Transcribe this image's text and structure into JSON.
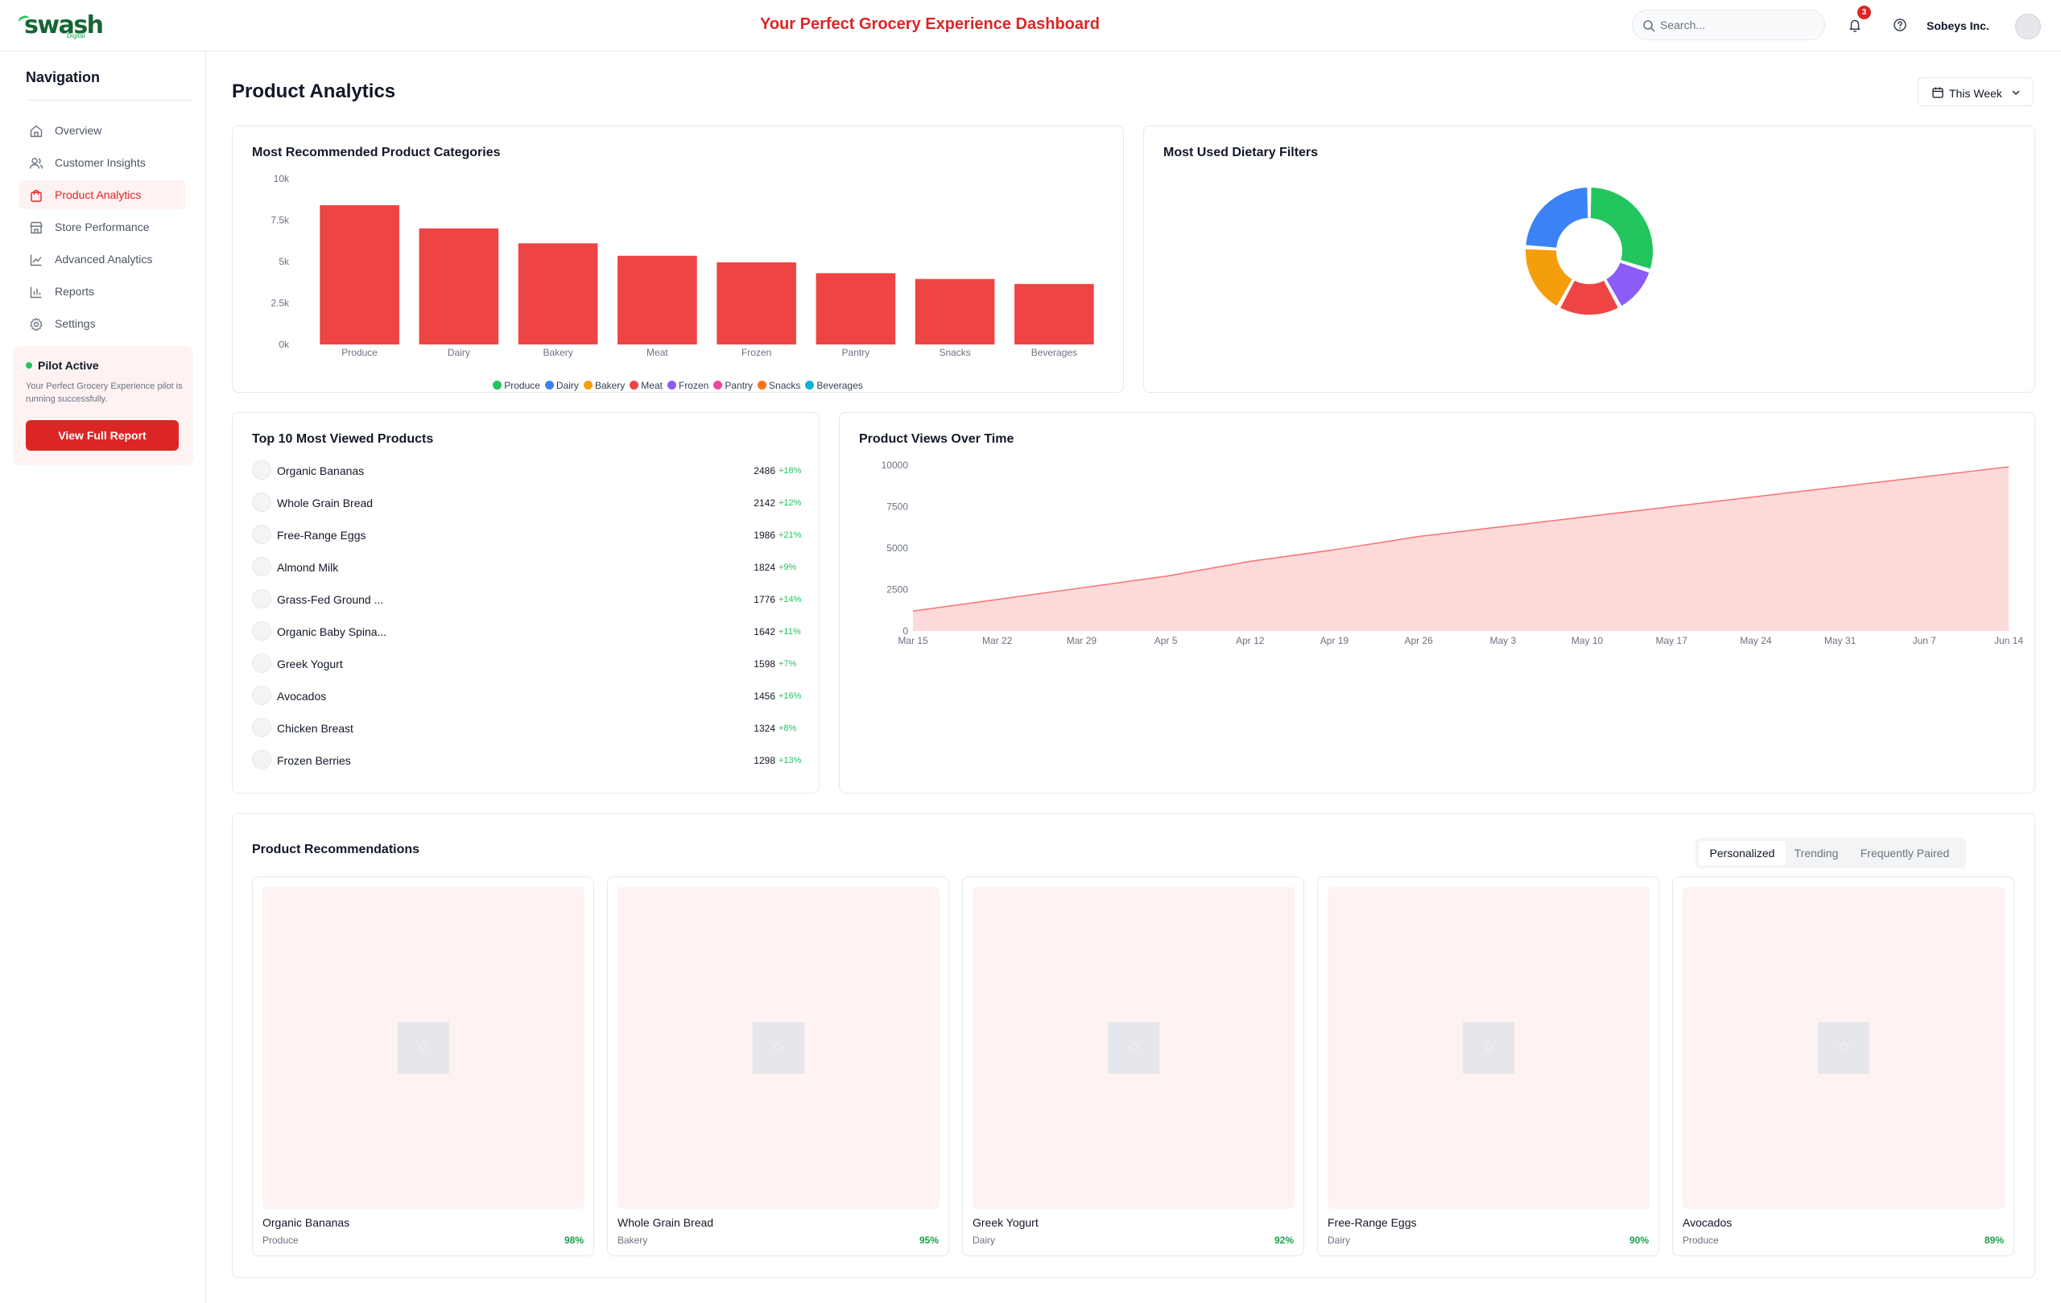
{
  "app": {
    "logo_text": "swash",
    "logo_sub": "Digital",
    "title": "Your Perfect Grocery Experience Dashboard",
    "search_placeholder": "Search...",
    "notification_count": "3",
    "company": "Sobeys Inc.",
    "accent_color": "#dc2626"
  },
  "sidebar": {
    "title": "Navigation",
    "items": [
      {
        "label": "Overview",
        "icon": "home-icon",
        "active": false
      },
      {
        "label": "Customer Insights",
        "icon": "users-icon",
        "active": false
      },
      {
        "label": "Product Analytics",
        "icon": "shopping-bag-icon",
        "active": true
      },
      {
        "label": "Store Performance",
        "icon": "store-icon",
        "active": false
      },
      {
        "label": "Advanced Analytics",
        "icon": "line-chart-icon",
        "active": false
      },
      {
        "label": "Reports",
        "icon": "bar-chart-icon",
        "active": false
      },
      {
        "label": "Settings",
        "icon": "gear-icon",
        "active": false
      }
    ],
    "pilot": {
      "title": "Pilot Active",
      "description": "Your Perfect Grocery Experience pilot is running successfully.",
      "button": "View Full Report"
    }
  },
  "main": {
    "title": "Product Analytics",
    "period": "This Week"
  },
  "categories_card": {
    "title": "Most Recommended Product Categories"
  },
  "dietary_card": {
    "title": "Most Used Dietary Filters"
  },
  "top_products": {
    "title": "Top 10 Most Viewed Products",
    "items": [
      {
        "name": "Organic Bananas",
        "views": "2486",
        "change": "+18%"
      },
      {
        "name": "Whole Grain Bread",
        "views": "2142",
        "change": "+12%"
      },
      {
        "name": "Free-Range Eggs",
        "views": "1986",
        "change": "+21%"
      },
      {
        "name": "Almond Milk",
        "views": "1824",
        "change": "+9%"
      },
      {
        "name": "Grass-Fed Ground ...",
        "views": "1776",
        "change": "+14%"
      },
      {
        "name": "Organic Baby Spina...",
        "views": "1642",
        "change": "+11%"
      },
      {
        "name": "Greek Yogurt",
        "views": "1598",
        "change": "+7%"
      },
      {
        "name": "Avocados",
        "views": "1456",
        "change": "+16%"
      },
      {
        "name": "Chicken Breast",
        "views": "1324",
        "change": "+8%"
      },
      {
        "name": "Frozen Berries",
        "views": "1298",
        "change": "+13%"
      }
    ]
  },
  "views_card": {
    "title": "Product Views Over Time"
  },
  "recommendations": {
    "title": "Product Recommendations",
    "tabs": [
      {
        "label": "Personalized",
        "active": true
      },
      {
        "label": "Trending",
        "active": false
      },
      {
        "label": "Frequently Paired",
        "active": false
      }
    ],
    "items": [
      {
        "name": "Organic Bananas",
        "category": "Produce",
        "score": "98%"
      },
      {
        "name": "Whole Grain Bread",
        "category": "Bakery",
        "score": "95%"
      },
      {
        "name": "Greek Yogurt",
        "category": "Dairy",
        "score": "92%"
      },
      {
        "name": "Free-Range Eggs",
        "category": "Dairy",
        "score": "90%"
      },
      {
        "name": "Avocados",
        "category": "Produce",
        "score": "89%"
      }
    ]
  },
  "chart_data": [
    {
      "type": "bar",
      "title": "Most Recommended Product Categories",
      "categories": [
        "Produce",
        "Dairy",
        "Bakery",
        "Meat",
        "Frozen",
        "Pantry",
        "Snacks",
        "Beverages"
      ],
      "values": [
        8400,
        7000,
        6100,
        5350,
        4950,
        4300,
        3950,
        3650
      ],
      "ylim": [
        0,
        10000
      ],
      "yticks": [
        "0k",
        "2.5k",
        "5k",
        "7.5k",
        "10k"
      ],
      "bar_color": "#ef4444",
      "legend": [
        {
          "name": "Produce",
          "color": "#22c55e"
        },
        {
          "name": "Dairy",
          "color": "#3b82f6"
        },
        {
          "name": "Bakery",
          "color": "#f59e0b"
        },
        {
          "name": "Meat",
          "color": "#ef4444"
        },
        {
          "name": "Frozen",
          "color": "#8b5cf6"
        },
        {
          "name": "Pantry",
          "color": "#ec4899"
        },
        {
          "name": "Snacks",
          "color": "#f97316"
        },
        {
          "name": "Beverages",
          "color": "#06b6d4"
        }
      ],
      "legend_position": "bottom"
    },
    {
      "type": "pie",
      "title": "Most Used Dietary Filters",
      "donut": true,
      "values": [
        30,
        12,
        16,
        18,
        24
      ],
      "colors": [
        "#22c55e",
        "#8b5cf6",
        "#ef4444",
        "#f59e0b",
        "#3b82f6"
      ]
    },
    {
      "type": "area",
      "title": "Product Views Over Time",
      "x": [
        "Mar 15",
        "Mar 22",
        "Mar 29",
        "Apr 5",
        "Apr 12",
        "Apr 19",
        "Apr 26",
        "May 3",
        "May 10",
        "May 17",
        "May 24",
        "May 31",
        "Jun 7",
        "Jun 14"
      ],
      "values": [
        1200,
        1900,
        2600,
        3300,
        4200,
        4900,
        5700,
        6300,
        6900,
        7500,
        8100,
        8700,
        9300,
        9900
      ],
      "ylim": [
        0,
        10000
      ],
      "yticks": [
        "0",
        "2500",
        "5000",
        "7500",
        "10000"
      ],
      "line_color": "#f87171",
      "fill_color": "#fcdada"
    }
  ]
}
